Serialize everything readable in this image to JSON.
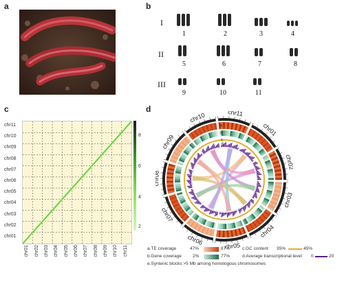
{
  "panels": {
    "a": "a",
    "b": "b",
    "c": "c",
    "d": "d"
  },
  "karyotype": {
    "groups": [
      "I",
      "II",
      "III"
    ],
    "numbers": [
      "1",
      "2",
      "3",
      "4",
      "5",
      "6",
      "7",
      "8",
      "9",
      "10",
      "11"
    ]
  },
  "heatmap": {
    "y_labels": [
      "chr11",
      "chr10",
      "chr09",
      "chr08",
      "chr07",
      "chr06",
      "chr05",
      "chr04",
      "chr03",
      "chr02",
      "chr01"
    ],
    "x_labels": [
      "chr01",
      "chr02",
      "chr03",
      "chr04",
      "chr05",
      "chr06",
      "chr07",
      "chr08",
      "chr09",
      "chr10",
      "chr11"
    ],
    "colorbar_ticks": [
      "8",
      "6",
      "4",
      "2"
    ]
  },
  "circos": {
    "chromosomes": [
      "chr01",
      "chr02",
      "chr03",
      "chr04",
      "chr05",
      "chr06",
      "chr07",
      "chr08",
      "chr09",
      "chr10",
      "chr11"
    ],
    "track_letters": [
      "a",
      "b",
      "c",
      "d"
    ]
  },
  "legend": {
    "a_label": "a.TE coverage",
    "a_min": "47%",
    "a_max": "87%",
    "b_label": "b.Gene coverage",
    "b_min": "2%",
    "b_max": "77%",
    "c_label": "c.GC content",
    "c_min": "35%",
    "c_max": "45%",
    "d_label": "d.Average transcriptional level",
    "d_min": "0",
    "d_max": "20",
    "e_label": "e.Syntenic blocks >5 Mb among homologous chromosomes"
  },
  "colors": {
    "te": "#d9531e",
    "gene": "#2e7d5b",
    "gc": "#e0b030",
    "expr": "#5a1a8a",
    "diag": "#6ad846"
  }
}
